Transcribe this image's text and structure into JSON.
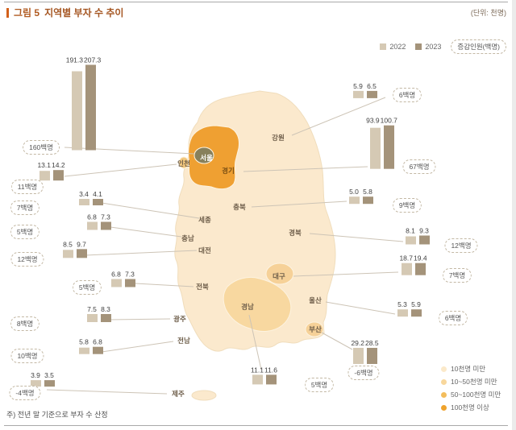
{
  "header": {
    "title_tag": "그림 5",
    "title": "지역별 부자 수 추이",
    "unit": "(단위: 천명)"
  },
  "legend": {
    "change_label": "증감인원(백명)"
  },
  "footnote": "주) 전년 말 기준으로 부자 수 산정",
  "chart_data": {
    "type": "bar",
    "title": "지역별 부자 수 추이",
    "unit": "천명",
    "series_names": [
      "2022",
      "2023"
    ],
    "colors": {
      "bar_2022": "#d5c9b4",
      "bar_2023": "#a4937a",
      "title_accent": "#d2601a",
      "map_base": "#fbe9cd",
      "map_mid": "#f8d8a0",
      "map_high": "#efa032",
      "map_seoul": "#87805c"
    },
    "regions": [
      {
        "id": "seoul",
        "name": "서울",
        "v2022": 191.3,
        "v2023": 207.3,
        "change": "160백명"
      },
      {
        "id": "incheon",
        "name": "인천",
        "v2022": 13.1,
        "v2023": 14.2,
        "change": "11백명"
      },
      {
        "id": "sejong",
        "name": "세종",
        "v2022": 3.4,
        "v2023": 4.1,
        "change": "7백명"
      },
      {
        "id": "chungnam",
        "name": "충남",
        "v2022": 6.8,
        "v2023": 7.3,
        "change": "5백명"
      },
      {
        "id": "daejeon",
        "name": "대전",
        "v2022": 8.5,
        "v2023": 9.7,
        "change": "12백명"
      },
      {
        "id": "jeonbuk",
        "name": "전북",
        "v2022": 6.8,
        "v2023": 7.3,
        "change": "5백명"
      },
      {
        "id": "gwangju",
        "name": "광주",
        "v2022": 7.5,
        "v2023": 8.3,
        "change": "8백명"
      },
      {
        "id": "jeonnam",
        "name": "전남",
        "v2022": 5.8,
        "v2023": 6.8,
        "change": "10백명"
      },
      {
        "id": "jeju",
        "name": "제주",
        "v2022": 3.9,
        "v2023": 3.5,
        "change": "-4백명"
      },
      {
        "id": "gangwon",
        "name": "강원",
        "v2022": 5.9,
        "v2023": 6.5,
        "change": "6백명"
      },
      {
        "id": "gyeonggi",
        "name": "경기",
        "v2022": 93.9,
        "v2023": 100.7,
        "change": "67백명"
      },
      {
        "id": "chungbuk",
        "name": "충북",
        "v2022": 5.0,
        "v2023": 5.8,
        "change": "9백명"
      },
      {
        "id": "gyeongbuk",
        "name": "경북",
        "v2022": 8.1,
        "v2023": 9.3,
        "change": "12백명"
      },
      {
        "id": "daegu",
        "name": "대구",
        "v2022": 18.7,
        "v2023": 19.4,
        "change": "7백명"
      },
      {
        "id": "ulsan",
        "name": "울산",
        "v2022": 5.3,
        "v2023": 5.9,
        "change": "6백명"
      },
      {
        "id": "busan",
        "name": "부산",
        "v2022": 29.2,
        "v2023": 28.5,
        "change": "-6백명"
      },
      {
        "id": "gyeongnam",
        "name": "경남",
        "v2022": 11.1,
        "v2023": 11.6,
        "change": "5백명"
      }
    ],
    "color_legend": [
      {
        "label": "10천명 미만",
        "color": "#fbe9c9"
      },
      {
        "label": "10~50천명 미만",
        "color": "#f8d79c"
      },
      {
        "label": "50~100천명 미만",
        "color": "#f3bd5c"
      },
      {
        "label": "100천명 이상",
        "color": "#efa32c"
      }
    ]
  }
}
